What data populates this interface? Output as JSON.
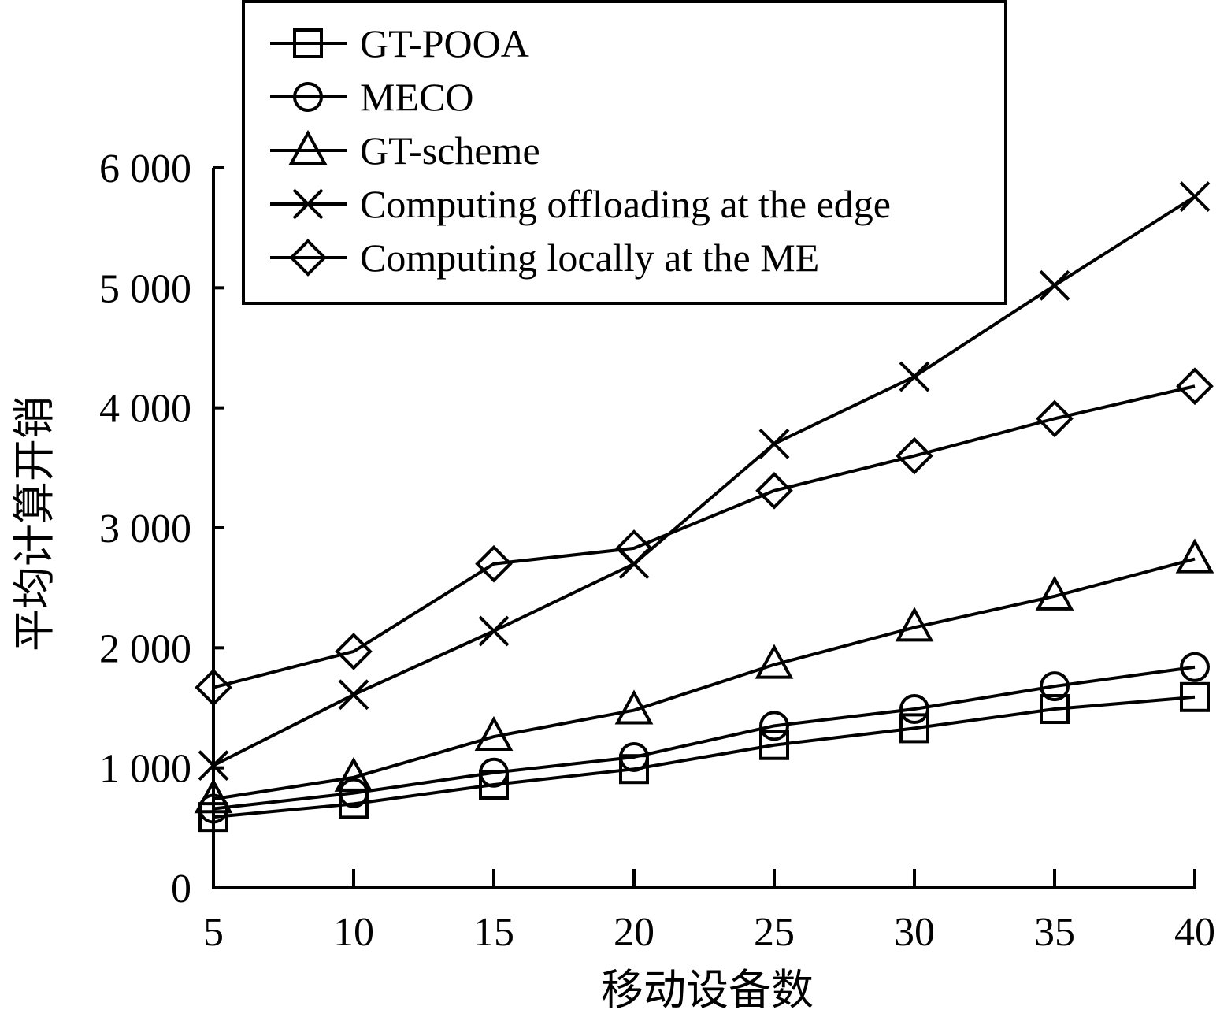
{
  "chart_data": {
    "type": "line",
    "title": "",
    "xlabel": "移动设备数",
    "ylabel": "平均计算开销",
    "x": [
      5,
      10,
      15,
      20,
      25,
      30,
      35,
      40
    ],
    "x_tick_labels": [
      "5",
      "10",
      "15",
      "20",
      "25",
      "30",
      "35",
      "40"
    ],
    "ylim": [
      0,
      6000
    ],
    "y_ticks": [
      0,
      1000,
      2000,
      3000,
      4000,
      5000,
      6000
    ],
    "y_tick_labels": [
      "0",
      "1 000",
      "2 000",
      "3 000",
      "4 000",
      "5 000",
      "6 000"
    ],
    "grid": false,
    "legend_position": "top-center",
    "series": [
      {
        "name": "GT-POOA",
        "marker": "square",
        "values": [
          590,
          700,
          860,
          990,
          1190,
          1330,
          1490,
          1590
        ]
      },
      {
        "name": "MECO",
        "marker": "circle",
        "values": [
          660,
          790,
          960,
          1090,
          1350,
          1490,
          1680,
          1840
        ]
      },
      {
        "name": "GT-scheme",
        "marker": "triangle",
        "values": [
          740,
          920,
          1260,
          1480,
          1860,
          2170,
          2430,
          2740
        ]
      },
      {
        "name": "Computing offloading at the edge",
        "marker": "x",
        "values": [
          1020,
          1610,
          2140,
          2700,
          3700,
          4260,
          5020,
          5760
        ]
      },
      {
        "name": "Computing locally at the ME",
        "marker": "diamond",
        "values": [
          1670,
          1970,
          2700,
          2830,
          3310,
          3600,
          3910,
          4180
        ]
      }
    ],
    "colors": {
      "line": "#000000",
      "background": "#ffffff"
    }
  }
}
